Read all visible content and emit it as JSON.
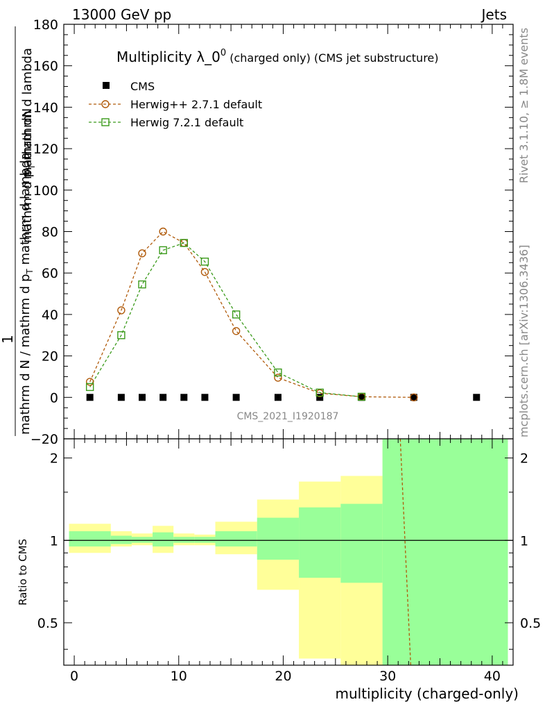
{
  "header": {
    "left": "13000 GeV pp",
    "right": "Jets",
    "side_top": "Rivet 3.1.10, ≥ 1.8M events",
    "side_bottom": "mcplots.cern.ch [arXiv:1306.3436]",
    "watermark": "CMS_2021_I1920187"
  },
  "chart_data": [
    {
      "type": "scatter",
      "title_main": "Multiplicity λ_0",
      "title_sup": "0",
      "title_suffix": " (charged only) (CMS jet substructure)",
      "ylabel_top": "mathrm dN",
      "ylabel_top_sub": "T",
      "ylabel_top_pre": "mathrm d p",
      "ylabel_top_post": " mathrm d lambda",
      "ylabel_one": "1",
      "ylabel_bottom_pre": "mathrm d N / mathrm d p",
      "ylabel_bottom_sub": "T",
      "ylabel_bottom_post": " mathrm d lambda",
      "xlim": [
        -1,
        42
      ],
      "ylim": [
        -20,
        180
      ],
      "yticks": [
        -20,
        0,
        20,
        40,
        60,
        80,
        100,
        120,
        140,
        160,
        180
      ],
      "ytick_labels": [
        "−20",
        "0",
        "20",
        "40",
        "60",
        "80",
        "100",
        "120",
        "140",
        "160",
        "180"
      ],
      "legend_position": "top-left",
      "series": [
        {
          "name": "CMS",
          "marker": "filled-square",
          "color": "#000000",
          "x": [
            1.5,
            4.5,
            6.5,
            8.5,
            10.5,
            12.5,
            15.5,
            19.5,
            23.5,
            27.5,
            32.5,
            38.5
          ],
          "y": [
            0,
            0,
            0,
            0,
            0,
            0,
            0,
            0,
            0,
            0,
            0,
            0
          ]
        },
        {
          "name": "Herwig++ 2.7.1 default",
          "marker": "open-circle",
          "color": "#b05a0a",
          "x": [
            1.5,
            4.5,
            6.5,
            8.5,
            10.5,
            12.5,
            15.5,
            19.5,
            23.5,
            27.5,
            32.5
          ],
          "y": [
            7.5,
            42,
            69.5,
            80,
            74.5,
            60.5,
            32,
            9.5,
            2,
            0.3,
            0
          ]
        },
        {
          "name": "Herwig 7.2.1 default",
          "marker": "open-square",
          "color": "#3a9a1a",
          "x": [
            1.5,
            4.5,
            6.5,
            8.5,
            10.5,
            12.5,
            15.5,
            19.5,
            23.5,
            27.5
          ],
          "y": [
            5,
            30,
            54.5,
            71,
            74.5,
            65.5,
            40,
            12,
            2.3,
            0.3
          ]
        }
      ]
    },
    {
      "type": "ratio",
      "ylabel": "Ratio to CMS",
      "xlabel": "multiplicity (charged-only)",
      "xlim": [
        -1,
        42
      ],
      "ylim_log": [
        0.35,
        2.35
      ],
      "yticks": [
        0.5,
        1,
        2
      ],
      "ytick_labels": [
        "0.5",
        "1",
        "2"
      ],
      "xticks": [
        0,
        10,
        20,
        30,
        40
      ],
      "xtick_labels": [
        "0",
        "10",
        "20",
        "30",
        "40"
      ],
      "reference": 1,
      "yellow_color": "#ffff99",
      "green_color": "#99ff99",
      "bands": [
        {
          "x0": -0.5,
          "x1": 3.5,
          "yellow": [
            0.9,
            1.15
          ],
          "green": [
            0.95,
            1.08
          ]
        },
        {
          "x0": 3.5,
          "x1": 5.5,
          "yellow": [
            0.95,
            1.08
          ],
          "green": [
            0.97,
            1.04
          ]
        },
        {
          "x0": 5.5,
          "x1": 7.5,
          "yellow": [
            0.96,
            1.06
          ],
          "green": [
            0.98,
            1.03
          ]
        },
        {
          "x0": 7.5,
          "x1": 9.5,
          "yellow": [
            0.9,
            1.13
          ],
          "green": [
            0.95,
            1.07
          ]
        },
        {
          "x0": 9.5,
          "x1": 11.5,
          "yellow": [
            0.96,
            1.06
          ],
          "green": [
            0.98,
            1.03
          ]
        },
        {
          "x0": 11.5,
          "x1": 13.5,
          "yellow": [
            0.96,
            1.05
          ],
          "green": [
            0.98,
            1.03
          ]
        },
        {
          "x0": 13.5,
          "x1": 17.5,
          "yellow": [
            0.89,
            1.17
          ],
          "green": [
            0.95,
            1.08
          ]
        },
        {
          "x0": 17.5,
          "x1": 21.5,
          "yellow": [
            0.66,
            1.41
          ],
          "green": [
            0.85,
            1.21
          ]
        },
        {
          "x0": 21.5,
          "x1": 25.5,
          "yellow": [
            0.37,
            1.64
          ],
          "green": [
            0.73,
            1.32
          ]
        },
        {
          "x0": 25.5,
          "x1": 29.5,
          "yellow": [
            0.35,
            1.72
          ],
          "green": [
            0.7,
            1.36
          ]
        },
        {
          "x0": 29.5,
          "x1": 41.5,
          "yellow": [
            0.35,
            2.35
          ],
          "green": [
            0.35,
            2.35
          ]
        }
      ],
      "ratio_lines": [
        {
          "name": "Herwig++ 2.7.1 default",
          "color": "#b05a0a",
          "x": [
            31.2,
            32.2
          ],
          "y": [
            2.35,
            0.35
          ]
        }
      ]
    }
  ]
}
